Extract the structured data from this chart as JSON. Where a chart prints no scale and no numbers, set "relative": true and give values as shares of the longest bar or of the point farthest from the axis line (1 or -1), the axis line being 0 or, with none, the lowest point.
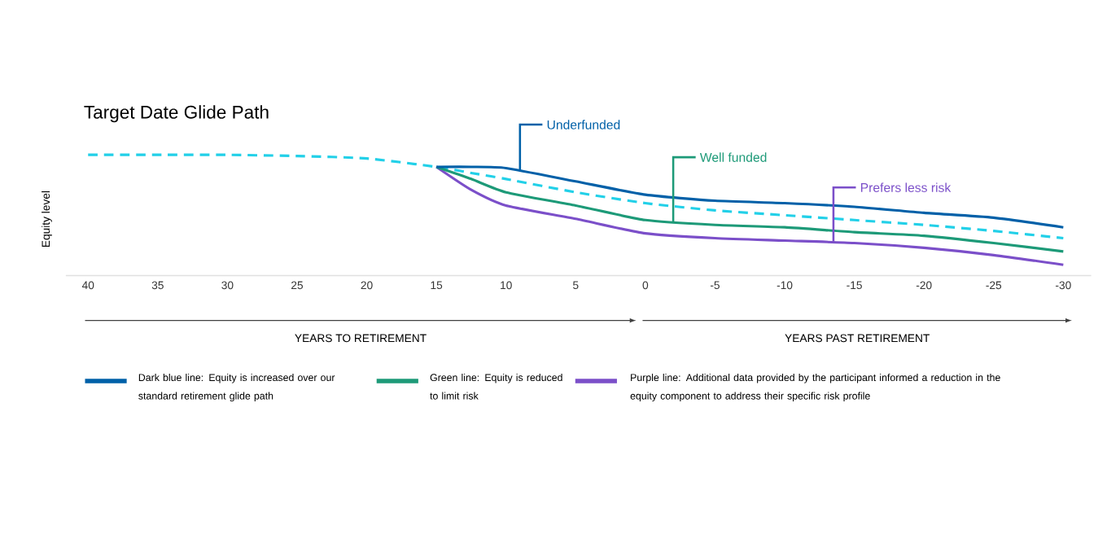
{
  "chart_data": {
    "type": "line",
    "title": "Target Date Glide Path",
    "ylabel": "Equity level",
    "relative": true,
    "x": [
      40,
      35,
      30,
      25,
      20,
      15,
      12.5,
      10,
      5,
      0,
      -5,
      -10,
      -15,
      -20,
      -25,
      -30
    ],
    "xlim": [
      41.6,
      -32
    ],
    "xticks": [
      40,
      35,
      30,
      25,
      20,
      15,
      10,
      5,
      0,
      -5,
      -10,
      -15,
      -20,
      -25,
      -30
    ],
    "series": [
      {
        "name": "Dark blue line: Equity is increased over our standard retirement glide path",
        "color": "#0060a8",
        "values": [
          null,
          null,
          null,
          null,
          null,
          0.9,
          0.9,
          0.89,
          0.78,
          0.67,
          0.62,
          0.6,
          0.57,
          0.52,
          0.48,
          0.4
        ]
      },
      {
        "name": "Green line: Equity is reduced to limit risk",
        "color": "#1d9a78",
        "values": [
          null,
          null,
          null,
          null,
          null,
          0.9,
          0.8,
          0.69,
          0.58,
          0.46,
          0.42,
          0.4,
          0.36,
          0.33,
          0.27,
          0.2
        ]
      },
      {
        "name": "Purple line: Additional data provided by the participant informed a reduction in the equity component to address their specific risk profile",
        "color": "#7b4fc9",
        "values": [
          null,
          null,
          null,
          null,
          null,
          0.9,
          0.71,
          0.58,
          0.47,
          0.35,
          0.31,
          0.29,
          0.27,
          0.23,
          0.17,
          0.09
        ]
      },
      {
        "color": "#22d0e8",
        "line_style": "dashed",
        "values": [
          1,
          1,
          1,
          0.99,
          0.97,
          0.9,
          0.85,
          0.8,
          0.69,
          0.6,
          0.54,
          0.5,
          0.46,
          0.42,
          0.37,
          0.31
        ]
      }
    ],
    "annotations": [
      {
        "text": "Underfunded",
        "x": 9,
        "y": 0.87
      },
      {
        "text": "Well funded",
        "x": -2,
        "y": 0.44
      },
      {
        "text": "Prefers less risk",
        "x": -13.5,
        "y": 0.28
      },
      "YEARS TO RETIREMENT",
      "YEARS PAST RETIREMENT"
    ],
    "legend": "bottom"
  }
}
